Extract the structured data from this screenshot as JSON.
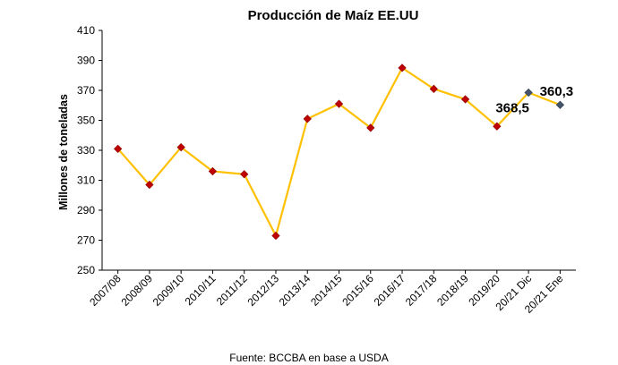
{
  "chart_data": {
    "type": "line",
    "title": "Producción de Maíz EE.UU",
    "xlabel": "",
    "ylabel": "Millones de toneladas",
    "ylim": [
      250,
      410
    ],
    "yticks": [
      250,
      270,
      290,
      310,
      330,
      350,
      370,
      390,
      410
    ],
    "grid": false,
    "legend": "none",
    "categories": [
      "2007/08",
      "2008/09",
      "2009/10",
      "2010/11",
      "2011/12",
      "2012/13",
      "2013/14",
      "2014/15",
      "2015/16",
      "2016/17",
      "2017/18",
      "2018/19",
      "2019/20",
      "20/21 Dic",
      "20/21 Ene"
    ],
    "series": [
      {
        "values": [
          331,
          307,
          332,
          316,
          314,
          273,
          351,
          361,
          345,
          385,
          371,
          364,
          346,
          368.5,
          360.3
        ],
        "line_color": "#FFC000",
        "marker_color": "#C00000",
        "highlight_marker_color": "#44546A"
      }
    ],
    "data_labels": [
      {
        "category": "20/21 Dic",
        "text": "368,5"
      },
      {
        "category": "20/21 Ene",
        "text": "360,3"
      }
    ],
    "source": "Fuente: BCCBA en base a USDA"
  }
}
